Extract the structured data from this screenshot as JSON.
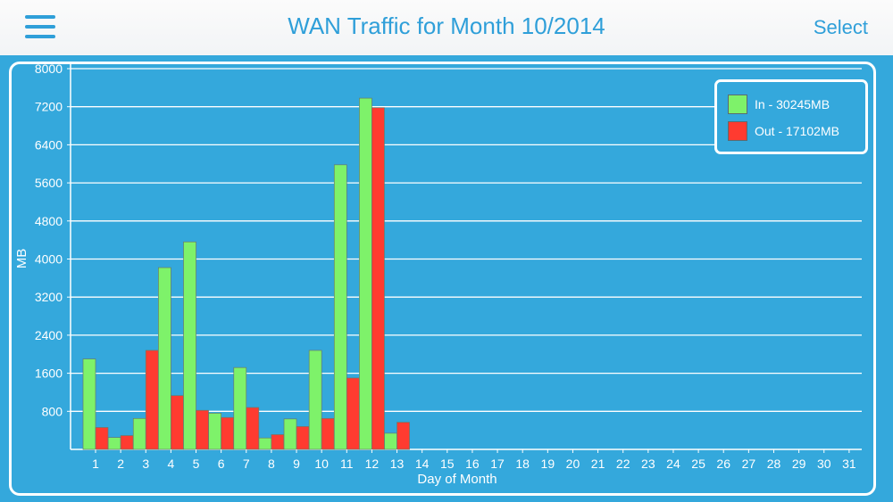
{
  "navbar": {
    "title": "WAN Traffic for Month 10/2014",
    "select_label": "Select",
    "menu_icon": "hamburger-menu-icon"
  },
  "colors": {
    "background": "#34a8dc",
    "in": "#7ef26a",
    "out": "#ff3b30",
    "grid": "#ffffff",
    "accent": "#2f9fd9"
  },
  "chart_data": {
    "type": "bar",
    "xlabel": "Day of Month",
    "ylabel": "MB",
    "ylim": [
      0,
      8000
    ],
    "yticks": [
      800,
      1600,
      2400,
      3200,
      4000,
      4800,
      5600,
      6400,
      7200,
      8000
    ],
    "grid": true,
    "legend_position": "top-right",
    "categories": [
      "1",
      "2",
      "3",
      "4",
      "5",
      "6",
      "7",
      "8",
      "9",
      "10",
      "11",
      "12",
      "13",
      "14",
      "15",
      "16",
      "17",
      "18",
      "19",
      "20",
      "21",
      "22",
      "23",
      "24",
      "25",
      "26",
      "27",
      "28",
      "29",
      "30",
      "31"
    ],
    "series": [
      {
        "name": "In - 30245MB",
        "color": "#7ef26a",
        "values": [
          1900,
          250,
          650,
          3820,
          4360,
          760,
          1720,
          240,
          640,
          2080,
          5980,
          7380,
          340,
          0,
          0,
          0,
          0,
          0,
          0,
          0,
          0,
          0,
          0,
          0,
          0,
          0,
          0,
          0,
          0,
          0,
          0
        ]
      },
      {
        "name": "Out - 17102MB",
        "color": "#ff3b30",
        "values": [
          460,
          290,
          2080,
          1130,
          820,
          670,
          880,
          310,
          480,
          650,
          1500,
          7180,
          570,
          0,
          0,
          0,
          0,
          0,
          0,
          0,
          0,
          0,
          0,
          0,
          0,
          0,
          0,
          0,
          0,
          0,
          0
        ]
      }
    ]
  }
}
